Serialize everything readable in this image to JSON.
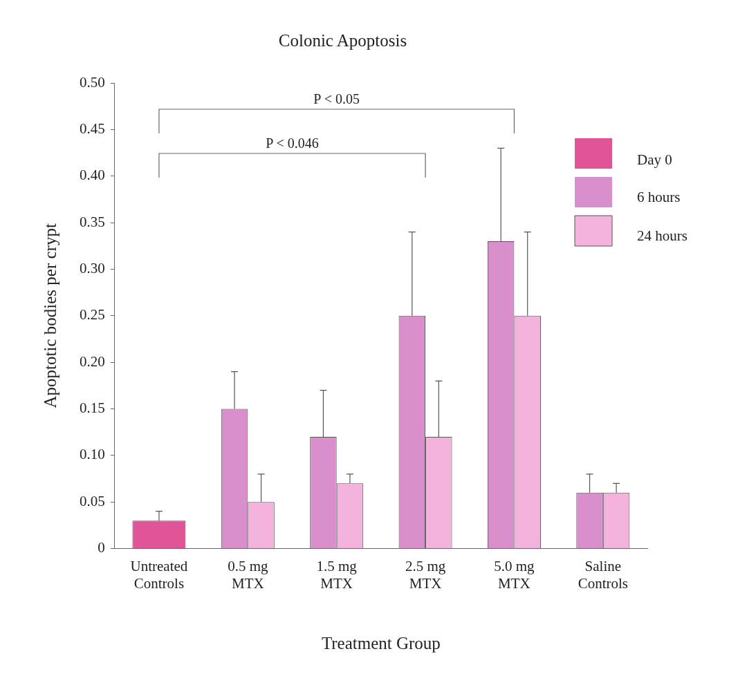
{
  "chart_data": {
    "type": "bar",
    "title": "Colonic Apoptosis",
    "xlabel": "Treatment Group",
    "ylabel": "Apoptotic bodies per crypt",
    "categories": [
      "Untreated\nControls",
      "0.5 mg\nMTX",
      "1.5 mg\nMTX",
      "2.5 mg\nMTX",
      "5.0 mg\nMTX",
      "Saline\nControls"
    ],
    "series": [
      {
        "name": "Day 0",
        "color": "#e05597",
        "values": [
          0.03,
          null,
          null,
          null,
          null,
          null
        ],
        "errors": [
          [
            0.03,
            0.04
          ],
          null,
          null,
          null,
          null,
          null
        ]
      },
      {
        "name": "6 hours",
        "color": "#d98fcc",
        "values": [
          null,
          0.15,
          0.12,
          0.25,
          0.33,
          0.06
        ],
        "errors": [
          null,
          [
            0.15,
            0.19
          ],
          [
            0.12,
            0.17
          ],
          [
            0.25,
            0.34
          ],
          [
            0.33,
            0.43
          ],
          [
            0.06,
            0.08
          ]
        ]
      },
      {
        "name": "24 hours",
        "color": "#f4b3dc",
        "values": [
          null,
          0.05,
          0.07,
          0.12,
          0.25,
          0.06
        ],
        "errors": [
          null,
          [
            0.05,
            0.08
          ],
          [
            0.07,
            0.08
          ],
          [
            0.12,
            0.18
          ],
          [
            0.25,
            0.34
          ],
          [
            0.06,
            0.07
          ]
        ]
      }
    ],
    "ylim": [
      0,
      0.5
    ],
    "yticks": [
      0,
      0.05,
      {
        "value": 0.1,
        "label": "0.10"
      },
      0.15,
      {
        "value": 0.2,
        "label": "0.20"
      },
      0.25,
      {
        "value": 0.3,
        "label": "0.30"
      },
      0.35,
      {
        "value": 0.4,
        "label": "0.40"
      },
      0.45,
      {
        "value": 0.5,
        "label": "0.50"
      }
    ],
    "annotations": [
      "P < 0.05",
      "P < 0.046"
    ],
    "grid": false,
    "legend": "top right"
  }
}
